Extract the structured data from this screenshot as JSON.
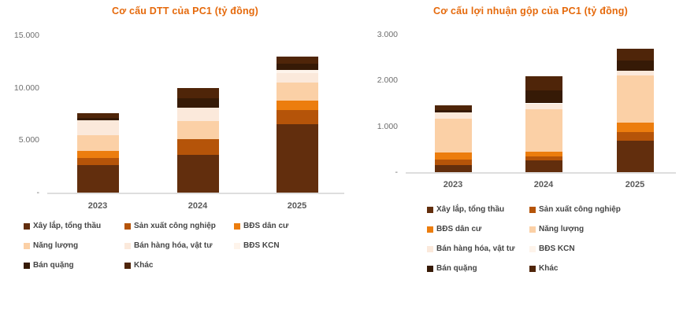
{
  "page": {
    "background": "#FFFFFF"
  },
  "chart_data": [
    {
      "type": "bar",
      "stacked": true,
      "title": "Cơ cấu DTT của PC1 (tỷ đồng)",
      "title_color": "#E5690B",
      "categories": [
        "2023",
        "2024",
        "2025"
      ],
      "series": [
        {
          "name": "Xây lắp, tổng thầu",
          "color": "#622E0D",
          "values": [
            2600,
            3600,
            6500
          ]
        },
        {
          "name": "Sản xuất công nghiệp",
          "color": "#B55409",
          "values": [
            700,
            1500,
            1400
          ]
        },
        {
          "name": "BĐS dân cư",
          "color": "#EC7D0E",
          "values": [
            700,
            0,
            900
          ]
        },
        {
          "name": "Năng lượng",
          "color": "#FBD0A6",
          "values": [
            1500,
            1700,
            1700
          ]
        },
        {
          "name": "Bán hàng hóa, vật tư",
          "color": "#FBE9DB",
          "values": [
            1400,
            1300,
            900
          ]
        },
        {
          "name": "BĐS KCN",
          "color": "#FEF4EB",
          "values": [
            0,
            0,
            300
          ]
        },
        {
          "name": "Bán quặng",
          "color": "#361A06",
          "values": [
            200,
            900,
            600
          ]
        },
        {
          "name": "Khác",
          "color": "#4F2509",
          "values": [
            500,
            1000,
            700
          ]
        }
      ],
      "y_ticks": [
        {
          "label": "15.000",
          "value": 15000
        },
        {
          "label": "10.000",
          "value": 10000
        },
        {
          "label": "5.000",
          "value": 5000
        },
        {
          "label": "-",
          "value": 0
        }
      ],
      "ylim": [
        0,
        15000
      ],
      "grid": false,
      "legend_position": "bottom",
      "legend_columns": 3
    },
    {
      "type": "bar",
      "stacked": true,
      "title": "Cơ cấu lợi nhuận gộp của PC1 (tỷ đồng)",
      "title_color": "#E5690B",
      "categories": [
        "2023",
        "2024",
        "2025"
      ],
      "series": [
        {
          "name": "Xây lắp, tổng thầu",
          "color": "#622E0D",
          "values": [
            160,
            250,
            690
          ]
        },
        {
          "name": "Sản xuất công nghiệp",
          "color": "#B55409",
          "values": [
            120,
            100,
            190
          ]
        },
        {
          "name": "BĐS dân cư",
          "color": "#EC7D0E",
          "values": [
            150,
            100,
            200
          ]
        },
        {
          "name": "Năng lượng",
          "color": "#FBD0A6",
          "values": [
            740,
            920,
            1030
          ]
        },
        {
          "name": "Bán hàng hóa, vật tư",
          "color": "#FBE9DB",
          "values": [
            130,
            130,
            100
          ]
        },
        {
          "name": "BĐS KCN",
          "color": "#FEF4EB",
          "values": [
            0,
            0,
            0
          ]
        },
        {
          "name": "Bán quặng",
          "color": "#361A06",
          "values": [
            50,
            280,
            230
          ]
        },
        {
          "name": "Khác",
          "color": "#4F2509",
          "values": [
            100,
            320,
            260
          ]
        }
      ],
      "y_ticks": [
        {
          "label": "3.000",
          "value": 3000
        },
        {
          "label": "2.000",
          "value": 2000
        },
        {
          "label": "1.000",
          "value": 1000
        },
        {
          "label": "-",
          "value": 0
        }
      ],
      "ylim": [
        0,
        3000
      ],
      "grid": false,
      "legend_position": "bottom",
      "legend_columns": 2
    }
  ]
}
